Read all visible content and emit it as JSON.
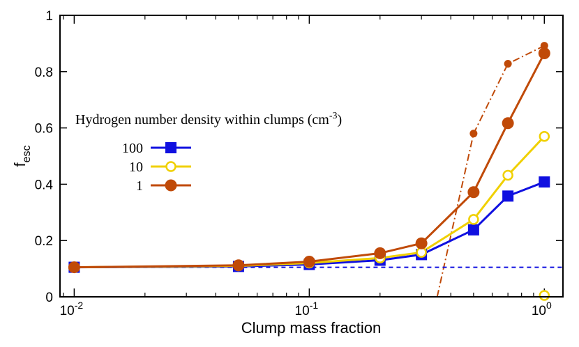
{
  "chart_data": {
    "type": "line",
    "xscale": "log",
    "xlim": [
      0.0087,
      1.2
    ],
    "ylim": [
      0,
      1
    ],
    "xticks": [
      {
        "value": 0.01,
        "base": "10",
        "exp": "-2"
      },
      {
        "value": 0.1,
        "base": "10",
        "exp": "-1"
      },
      {
        "value": 1,
        "base": "10",
        "exp": "0"
      }
    ],
    "yticks": [
      {
        "value": 0,
        "label": "0"
      },
      {
        "value": 0.2,
        "label": "0.2"
      },
      {
        "value": 0.4,
        "label": "0.4"
      },
      {
        "value": 0.6,
        "label": "0.6"
      },
      {
        "value": 0.8,
        "label": "0.8"
      },
      {
        "value": 1,
        "label": "1"
      }
    ],
    "xlabel": "Clump mass fraction",
    "ylabel": {
      "base": "f",
      "sub": "esc"
    },
    "legend": {
      "title": "Hydrogen number density within clumps (cm",
      "title_sup": "-3",
      "title_end": ")",
      "placement": "left-middle"
    },
    "series": [
      {
        "name": "100",
        "color": "#1010e0",
        "marker": "square",
        "x": [
          0.01,
          0.05,
          0.1,
          0.2,
          0.3,
          0.5,
          0.7,
          1.0
        ],
        "y": [
          0.105,
          0.108,
          0.115,
          0.13,
          0.15,
          0.238,
          0.358,
          0.408
        ]
      },
      {
        "name": "10",
        "color": "#f0d000",
        "marker": "open-circle",
        "x": [
          0.01,
          0.05,
          0.1,
          0.2,
          0.3,
          0.5,
          0.7,
          1.0
        ],
        "y": [
          0.105,
          0.11,
          0.12,
          0.138,
          0.158,
          0.275,
          0.432,
          0.57
        ]
      },
      {
        "name": "1",
        "color": "#c04a08",
        "marker": "filled-circle",
        "x": [
          0.01,
          0.05,
          0.1,
          0.2,
          0.3,
          0.5,
          0.7,
          1.0
        ],
        "y": [
          0.105,
          0.112,
          0.125,
          0.155,
          0.19,
          0.372,
          0.617,
          0.865
        ]
      }
    ],
    "extra_lines": [
      {
        "name": "",
        "color": "#c04a08",
        "style": "dash-dot",
        "marker": "small-filled-circle",
        "x": [
          0.35,
          0.5,
          0.7,
          1.0
        ],
        "y": [
          0.0,
          0.58,
          0.828,
          0.892
        ],
        "marked_x": [
          0.5,
          0.7,
          1.0
        ],
        "marked_y": [
          0.58,
          0.828,
          0.892
        ]
      },
      {
        "name": "",
        "color": "#1010e0",
        "style": "dashed",
        "x": [
          0.01,
          1.2
        ],
        "y": [
          0.105,
          0.105
        ]
      }
    ],
    "extra_points": [
      {
        "color": "#f0d000",
        "marker": "open-circle",
        "x": 1.0,
        "y": 0.005
      }
    ]
  }
}
